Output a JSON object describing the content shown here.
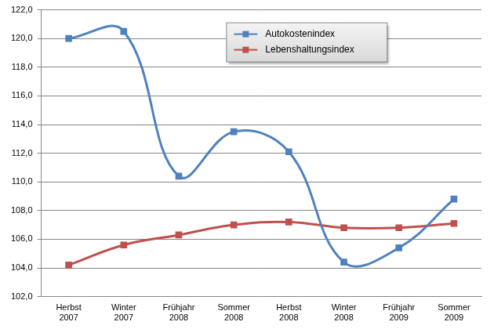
{
  "chart_data": {
    "type": "line",
    "categories": [
      "Herbst 2007",
      "Winter 2007",
      "Frühjahr 2008",
      "Sommer 2008",
      "Herbst 2008",
      "Winter 2008",
      "Frühjahr 2009",
      "Sommer 2009"
    ],
    "series": [
      {
        "name": "Autokostenindex",
        "color": "#4f81bd",
        "marker": "square",
        "line_style": "solid",
        "values": [
          120.0,
          120.5,
          110.4,
          113.5,
          112.1,
          104.4,
          105.4,
          108.8
        ]
      },
      {
        "name": "Lebenshaltungsindex",
        "color": "#c0504d",
        "marker": "square",
        "line_style": "solid",
        "values": [
          104.2,
          105.6,
          106.3,
          107.0,
          107.2,
          106.8,
          106.8,
          107.1
        ]
      }
    ],
    "ylim": [
      102,
      122
    ],
    "yticks": [
      {
        "value": 102,
        "label": "102,0"
      },
      {
        "value": 104,
        "label": "104,0"
      },
      {
        "value": 106,
        "label": "106,0"
      },
      {
        "value": 108,
        "label": "108,0"
      },
      {
        "value": 110,
        "label": "110,0"
      },
      {
        "value": 112,
        "label": "112,0"
      },
      {
        "value": 114,
        "label": "114,0"
      },
      {
        "value": 116,
        "label": "116,0"
      },
      {
        "value": 118,
        "label": "118,0"
      },
      {
        "value": 120,
        "label": "120,0"
      },
      {
        "value": 122,
        "label": "122,0"
      }
    ],
    "grid": true,
    "legend": "top"
  }
}
